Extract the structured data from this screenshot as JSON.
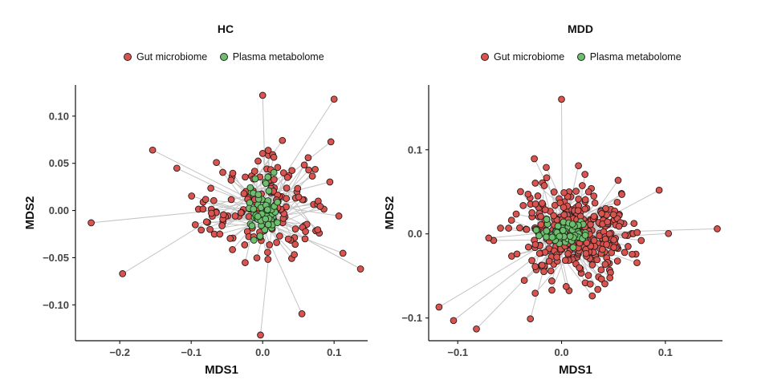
{
  "chart_data": [
    {
      "type": "scatter",
      "panel": "HC",
      "title": "HC",
      "xlabel": "MDS1",
      "ylabel": "MDS2",
      "xlim": [
        -0.262,
        0.147
      ],
      "ylim": [
        -0.138,
        0.133
      ],
      "xticks": [
        -0.2,
        -0.1,
        0.0,
        0.1
      ],
      "xtick_labels": [
        "−0.2",
        "−0.1",
        "0.0",
        "0.1"
      ],
      "yticks": [
        -0.1,
        -0.05,
        0.0,
        0.05,
        0.1
      ],
      "ytick_labels": [
        "−0.10",
        "−0.05",
        "0.00",
        "0.05",
        "0.10"
      ],
      "edges": "each Gut microbiome point linked by a grey line to the Plasma metabolome cluster centre",
      "series": [
        {
          "name": "Gut microbiome",
          "color": "#d9534f",
          "n_points": 170,
          "x_range": [
            -0.24,
            0.14
          ],
          "y_range": [
            -0.13,
            0.122
          ],
          "outliers": [
            [
              -0.24,
              -0.013
            ],
            [
              -0.196,
              -0.067
            ],
            [
              -0.154,
              0.064
            ],
            [
              0.0,
              0.122
            ],
            [
              0.1,
              0.118
            ],
            [
              -0.003,
              -0.132
            ],
            [
              0.137,
              -0.062
            ]
          ]
        },
        {
          "name": "Plasma metabolome",
          "color": "#6dbf6d",
          "n_points": 60,
          "center": [
            0.0,
            0.002
          ],
          "spread": 0.015
        }
      ]
    },
    {
      "type": "scatter",
      "panel": "MDD",
      "title": "MDD",
      "xlabel": "MDS1",
      "ylabel": "MDS2",
      "xlim": [
        -0.128,
        0.155
      ],
      "ylim": [
        -0.127,
        0.177
      ],
      "xticks": [
        -0.1,
        0.0,
        0.1
      ],
      "xtick_labels": [
        "−0.1",
        "0.0",
        "0.1"
      ],
      "yticks": [
        -0.1,
        0.0,
        0.1
      ],
      "ytick_labels": [
        "−0.1",
        "0.0",
        "0.1"
      ],
      "edges": "each Gut microbiome point linked by a grey line to the Plasma metabolome cluster centre",
      "series": [
        {
          "name": "Gut microbiome",
          "color": "#d9534f",
          "n_points": 360,
          "x_range": [
            -0.12,
            0.15
          ],
          "y_range": [
            -0.113,
            0.16
          ],
          "outliers": [
            [
              0.0,
              0.16
            ],
            [
              0.15,
              0.006
            ],
            [
              -0.118,
              -0.087
            ],
            [
              -0.104,
              -0.103
            ],
            [
              -0.082,
              -0.113
            ],
            [
              -0.03,
              -0.101
            ],
            [
              0.094,
              0.052
            ]
          ]
        },
        {
          "name": "Plasma metabolome",
          "color": "#6dbf6d",
          "n_points": 80,
          "center": [
            0.003,
            0.0
          ],
          "spread": 0.012
        }
      ]
    }
  ],
  "panels": {
    "left": {
      "title": "HC",
      "legend": [
        "Gut microbiome",
        "Plasma metabolome"
      ]
    },
    "right": {
      "title": "MDD",
      "legend": [
        "Gut microbiome",
        "Plasma metabolome"
      ]
    }
  }
}
